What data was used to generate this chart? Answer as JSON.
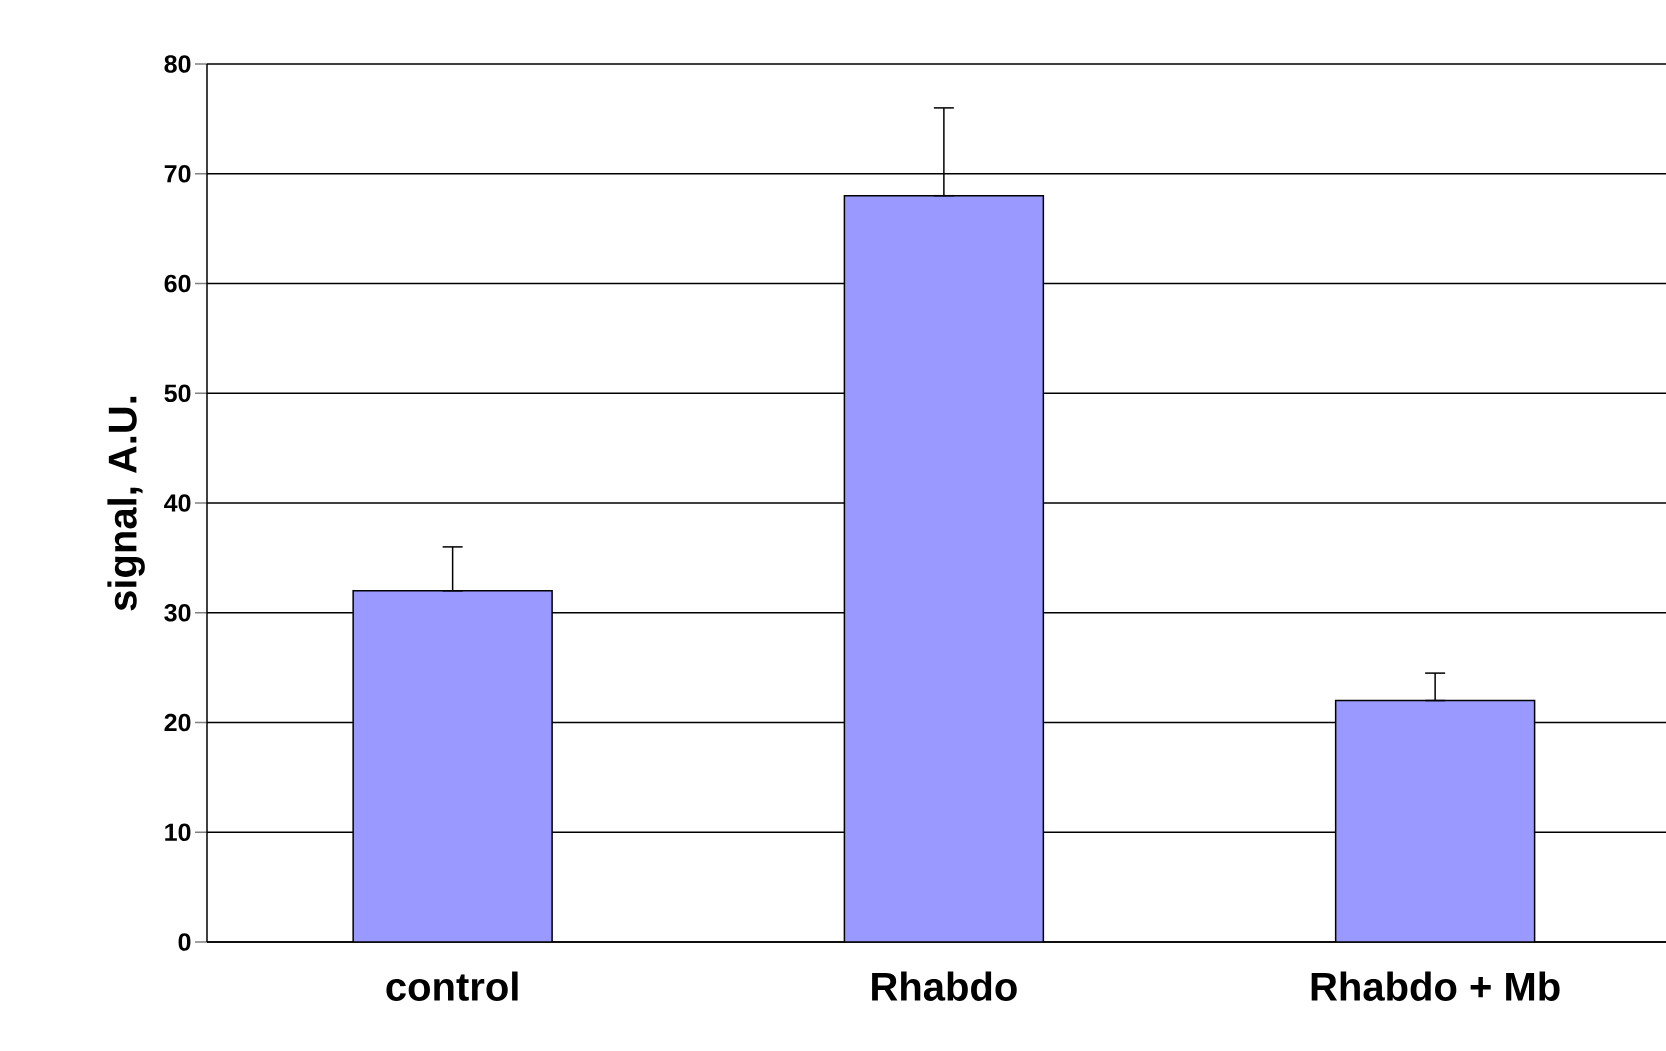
{
  "chart_data": {
    "type": "bar",
    "ylabel": "signal, A.U.",
    "categories": [
      "control",
      "Rhabdo",
      "Rhabdo + Mb"
    ],
    "values": [
      32,
      68,
      22
    ],
    "errors": [
      [
        32,
        36
      ],
      [
        68,
        76
      ],
      [
        22,
        24.5
      ]
    ],
    "color": "#9999ff",
    "ylim": [
      0,
      80
    ],
    "yticks": [
      0,
      10,
      20,
      30,
      40,
      50,
      60,
      70,
      80
    ],
    "grid": "y"
  }
}
